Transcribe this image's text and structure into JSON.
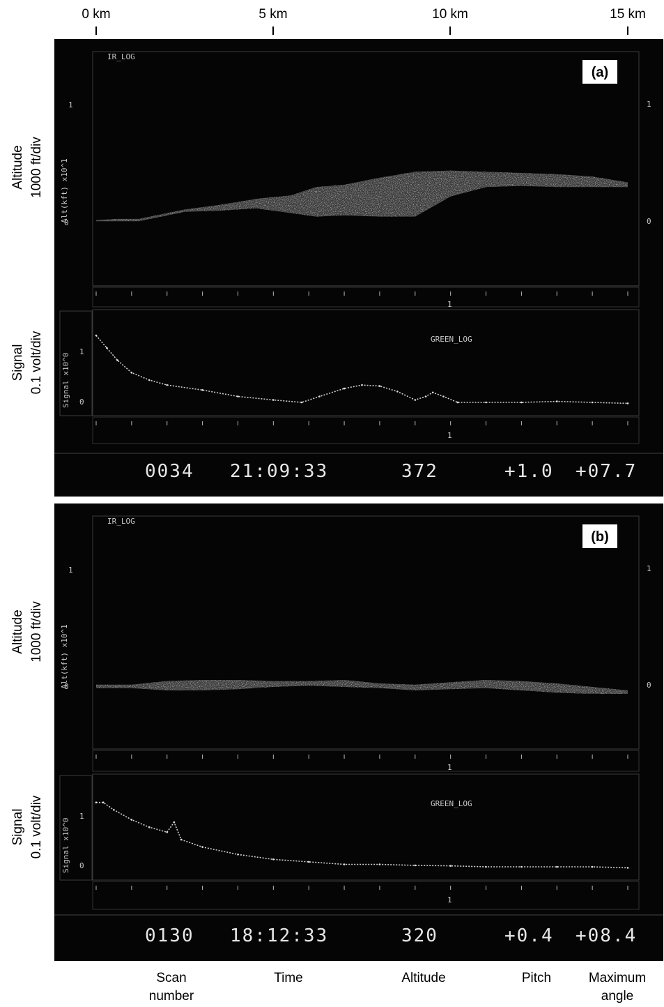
{
  "top_axis": {
    "ticks": [
      {
        "label": "0 km",
        "km": 0
      },
      {
        "label": "5 km",
        "km": 5
      },
      {
        "label": "10 km",
        "km": 10
      },
      {
        "label": "15 km",
        "km": 15
      }
    ]
  },
  "panels": [
    {
      "id": "a",
      "tag": "(a)",
      "altitude_plot": {
        "title": "IR_LOG",
        "axis_label": "Alt(kft) x10^1",
        "tick_top": "1",
        "tick_bottom": "0",
        "right_tick_top": "1",
        "right_tick_bottom": "0",
        "side_label_line1": "Altitude",
        "side_label_line2": "1000 ft/div"
      },
      "signal_plot": {
        "title": "GREEN_LOG",
        "axis_label": "Signal x10^0",
        "tick_top": "1",
        "tick_bottom": "0",
        "side_label_line1": "Signal",
        "side_label_line2": "0.1 volt/div",
        "x_marker": "1"
      },
      "readout": {
        "scan": "0034",
        "time": "21:09:33",
        "altitude": "372",
        "pitch": "+1.0",
        "max_angle": "+07.7"
      }
    },
    {
      "id": "b",
      "tag": "(b)",
      "altitude_plot": {
        "title": "IR_LOG",
        "axis_label": "Alt(kft) x10^1",
        "tick_top": "1",
        "tick_bottom": "0",
        "right_tick_top": "1",
        "right_tick_bottom": "0",
        "side_label_line1": "Altitude",
        "side_label_line2": "1000 ft/div"
      },
      "signal_plot": {
        "title": "GREEN_LOG",
        "axis_label": "Signal x10^0",
        "tick_top": "1",
        "tick_bottom": "0",
        "side_label_line1": "Signal",
        "side_label_line2": "0.1 volt/div",
        "x_marker": "1"
      },
      "readout": {
        "scan": "0130",
        "time": "18:12:33",
        "altitude": "320",
        "pitch": "+0.4",
        "max_angle": "+08.4"
      }
    }
  ],
  "bottom_legend": {
    "scan_line1": "Scan",
    "scan_line2": "number",
    "time": "Time",
    "altitude": "Altitude",
    "pitch": "Pitch",
    "max_angle_line1": "Maximum",
    "max_angle_line2": "angle"
  },
  "chart_data": [
    {
      "type": "line",
      "panel": "a",
      "x_axis": {
        "label": "",
        "unit": "km",
        "range": [
          0,
          15
        ]
      },
      "altitude_echo": {
        "y_unit": "kft",
        "y_ticks": [
          0,
          10
        ],
        "series": [
          {
            "x": [
              0.0,
              0.6,
              1.2,
              2.5,
              3.5,
              4.5,
              5.5,
              6.2,
              7.0,
              8.0,
              9.0,
              10.0,
              11.0,
              12.0,
              13.0,
              14.0,
              15.0
            ],
            "base": [
              0.1,
              0.1,
              0.1,
              0.9,
              1.0,
              1.2,
              0.8,
              0.5,
              0.6,
              0.5,
              0.5,
              2.2,
              3.0,
              3.1,
              3.0,
              3.0,
              3.0
            ],
            "top": [
              0.2,
              0.3,
              0.3,
              1.1,
              1.5,
              2.0,
              2.3,
              3.0,
              3.2,
              3.8,
              4.3,
              4.4,
              4.3,
              4.2,
              4.1,
              3.9,
              3.4
            ]
          }
        ]
      },
      "signal": {
        "y_unit": "V",
        "y_ticks": [
          0,
          1
        ],
        "series": [
          {
            "x": [
              0.0,
              0.3,
              0.6,
              1.0,
              1.5,
              2.0,
              3.0,
              4.0,
              5.0,
              5.8,
              6.3,
              7.0,
              7.5,
              8.0,
              8.5,
              9.0,
              9.3,
              9.5,
              9.8,
              10.2,
              11.0,
              12.0,
              13.0,
              14.0,
              15.0
            ],
            "y": [
              1.35,
              1.1,
              0.85,
              0.6,
              0.45,
              0.35,
              0.25,
              0.12,
              0.05,
              0.0,
              0.12,
              0.28,
              0.35,
              0.33,
              0.22,
              0.05,
              0.12,
              0.2,
              0.12,
              0.0,
              0.0,
              0.0,
              0.02,
              0.0,
              -0.02
            ]
          }
        ]
      }
    },
    {
      "type": "line",
      "panel": "b",
      "x_axis": {
        "label": "",
        "unit": "km",
        "range": [
          0,
          15
        ]
      },
      "altitude_echo": {
        "y_unit": "kft",
        "y_ticks": [
          0,
          10
        ],
        "series": [
          {
            "x": [
              0.0,
              1.0,
              2.0,
              3.0,
              4.0,
              5.0,
              6.0,
              7.0,
              8.0,
              9.0,
              10.0,
              11.0,
              12.0,
              13.0,
              14.0,
              15.0
            ],
            "base": [
              -0.1,
              -0.1,
              -0.3,
              -0.3,
              -0.2,
              0.0,
              0.1,
              0.0,
              -0.1,
              -0.3,
              -0.2,
              -0.1,
              -0.3,
              -0.5,
              -0.6,
              -0.6
            ],
            "top": [
              0.2,
              0.2,
              0.5,
              0.6,
              0.6,
              0.5,
              0.5,
              0.6,
              0.3,
              0.2,
              0.4,
              0.6,
              0.5,
              0.3,
              0.0,
              -0.3
            ]
          }
        ]
      },
      "signal": {
        "y_unit": "V",
        "y_ticks": [
          0,
          1
        ],
        "series": [
          {
            "x": [
              0.0,
              0.2,
              0.5,
              1.0,
              1.5,
              2.0,
              2.2,
              2.4,
              3.0,
              4.0,
              5.0,
              6.0,
              7.0,
              8.0,
              9.0,
              10.0,
              11.0,
              12.0,
              13.0,
              14.0,
              15.0
            ],
            "y": [
              1.3,
              1.3,
              1.15,
              0.95,
              0.8,
              0.7,
              0.9,
              0.55,
              0.4,
              0.25,
              0.15,
              0.1,
              0.05,
              0.05,
              0.03,
              0.02,
              0.0,
              0.0,
              0.0,
              0.0,
              -0.02
            ]
          }
        ]
      }
    }
  ]
}
